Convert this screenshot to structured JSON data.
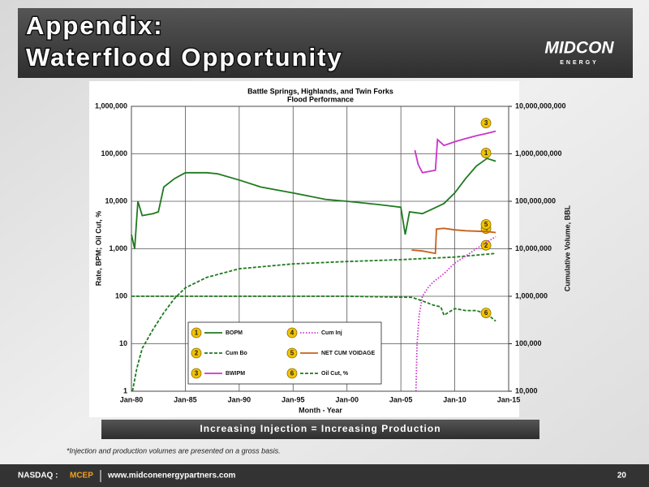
{
  "header": {
    "title_lines": [
      "Appendix:",
      "Waterflood Opportunity"
    ],
    "logo": "MIDCON",
    "logo_sub": "ENERGY"
  },
  "chart_data": {
    "type": "line",
    "title": "Battle Springs, Highlands, and Twin Forks",
    "subtitle": "Flood Performance",
    "x_label": "Month - Year",
    "y_label": "Rate, BPM; Oil Cut, %",
    "y2_label": "Cumulative Volume, BBL",
    "log_scale": true,
    "grid": true,
    "legend": "bottom-center",
    "xlim": [
      1980,
      2015
    ],
    "xticks": [
      {
        "value": 1980,
        "label": "Jan-80"
      },
      {
        "value": 1985,
        "label": "Jan-85"
      },
      {
        "value": 1990,
        "label": "Jan-90"
      },
      {
        "value": 1995,
        "label": "Jan-95"
      },
      {
        "value": 2000,
        "label": "Jan-00"
      },
      {
        "value": 2005,
        "label": "Jan-05"
      },
      {
        "value": 2010,
        "label": "Jan-10"
      },
      {
        "value": 2015,
        "label": "Jan-15"
      }
    ],
    "ylim": [
      1,
      1000000
    ],
    "yticks": [
      1,
      10,
      100,
      {
        "value": 1000,
        "label": "1,000"
      },
      {
        "value": 10000,
        "label": "10,000"
      },
      {
        "value": 100000,
        "label": "100,000"
      },
      {
        "value": 1000000,
        "label": "1,000,000"
      }
    ],
    "y2lim": [
      10000,
      10000000000
    ],
    "y2ticks": [
      {
        "value": 10000,
        "label": "10,000"
      },
      {
        "value": 100000,
        "label": "100,000"
      },
      {
        "value": 1000000,
        "label": "1,000,000"
      },
      {
        "value": 10000000,
        "label": "10,000,000"
      },
      {
        "value": 100000000,
        "label": "100,000,000"
      },
      {
        "value": 1000000000,
        "label": "1,000,000,000"
      },
      {
        "value": 10000000000,
        "label": "10,000,000,000"
      }
    ],
    "series": [
      {
        "name": "BOPM",
        "marker": "1",
        "color": "#1f7a1f",
        "dash": "solid",
        "axis": "y",
        "x": [
          1980,
          1980.3,
          1980.6,
          1981,
          1982,
          1982.5,
          1983,
          1984,
          1985,
          1987,
          1988,
          1990,
          1992,
          1995,
          1998,
          2000,
          2003,
          2005,
          2005.4,
          2005.8,
          2007,
          2008,
          2009,
          2010,
          2011,
          2012,
          2013,
          2013.8
        ],
        "values": [
          2000,
          1000,
          10000,
          5000,
          5500,
          6000,
          20000,
          30000,
          40000,
          40000,
          38000,
          28000,
          20000,
          15000,
          11000,
          10000,
          8500,
          7500,
          2000,
          6000,
          5500,
          7000,
          9000,
          15000,
          30000,
          55000,
          80000,
          70000
        ]
      },
      {
        "name": "Cum Bo",
        "marker": "2",
        "color": "#1f7a1f",
        "dash": "dashed",
        "axis": "y2",
        "x": [
          1980.1,
          1980.5,
          1981,
          1982,
          1983,
          1984,
          1985,
          1987,
          1990,
          1995,
          2000,
          2005,
          2010,
          2013.8
        ],
        "values": [
          10000,
          30000,
          80000,
          200000,
          450000,
          900000,
          1500000,
          2500000,
          3800000,
          4800000,
          5400000,
          5900000,
          6700000,
          8000000
        ]
      },
      {
        "name": "BWIPM",
        "marker": "3",
        "color": "#cc33cc",
        "dash": "solid",
        "axis": "y",
        "x": [
          2006.3,
          2006.6,
          2007,
          2008.2,
          2008.4,
          2009,
          2010,
          2011,
          2012,
          2013,
          2013.8
        ],
        "values": [
          120000,
          60000,
          40000,
          45000,
          200000,
          150000,
          180000,
          210000,
          240000,
          270000,
          300000
        ]
      },
      {
        "name": "Cum Inj",
        "marker": "4",
        "color": "#cc33cc",
        "dash": "dotted",
        "axis": "y2",
        "x": [
          2006.4,
          2006.5,
          2006.7,
          2007,
          2007.5,
          2008,
          2009,
          2010,
          2011,
          2012,
          2013,
          2013.8
        ],
        "values": [
          10000,
          100000,
          400000,
          1000000,
          1500000,
          2000000,
          3000000,
          5000000,
          7000000,
          10000000,
          14000000,
          18000000
        ]
      },
      {
        "name": "NET CUM VOIDAGE",
        "marker": "5",
        "color": "#c8601c",
        "dash": "solid",
        "axis": "y2",
        "x": [
          2006,
          2007,
          2008.2,
          2008.3,
          2009,
          2010,
          2011,
          2012,
          2013,
          2013.8
        ],
        "values": [
          9400000,
          9000000,
          8000000,
          26000000,
          27000000,
          25000000,
          24000000,
          23500000,
          23000000,
          22000000
        ]
      },
      {
        "name": "Oil Cut, %",
        "marker": "6",
        "color": "#1f7a1f",
        "dash": "dashed",
        "axis": "y",
        "x": [
          1980,
          1990,
          2000,
          2006,
          2007,
          2008,
          2008.7,
          2009,
          2010,
          2011,
          2012,
          2013,
          2013.8
        ],
        "values": [
          100,
          100,
          100,
          95,
          80,
          65,
          60,
          40,
          55,
          50,
          50,
          42,
          30
        ]
      }
    ]
  },
  "banner": "Increasing Injection = Increasing Production",
  "footnote": "*Injection and production volumes are presented on a gross basis.",
  "footer": {
    "exchange": "NASDAQ :",
    "ticker": "MCEP",
    "url": "www.midconenergypartners.com",
    "page": "20"
  }
}
